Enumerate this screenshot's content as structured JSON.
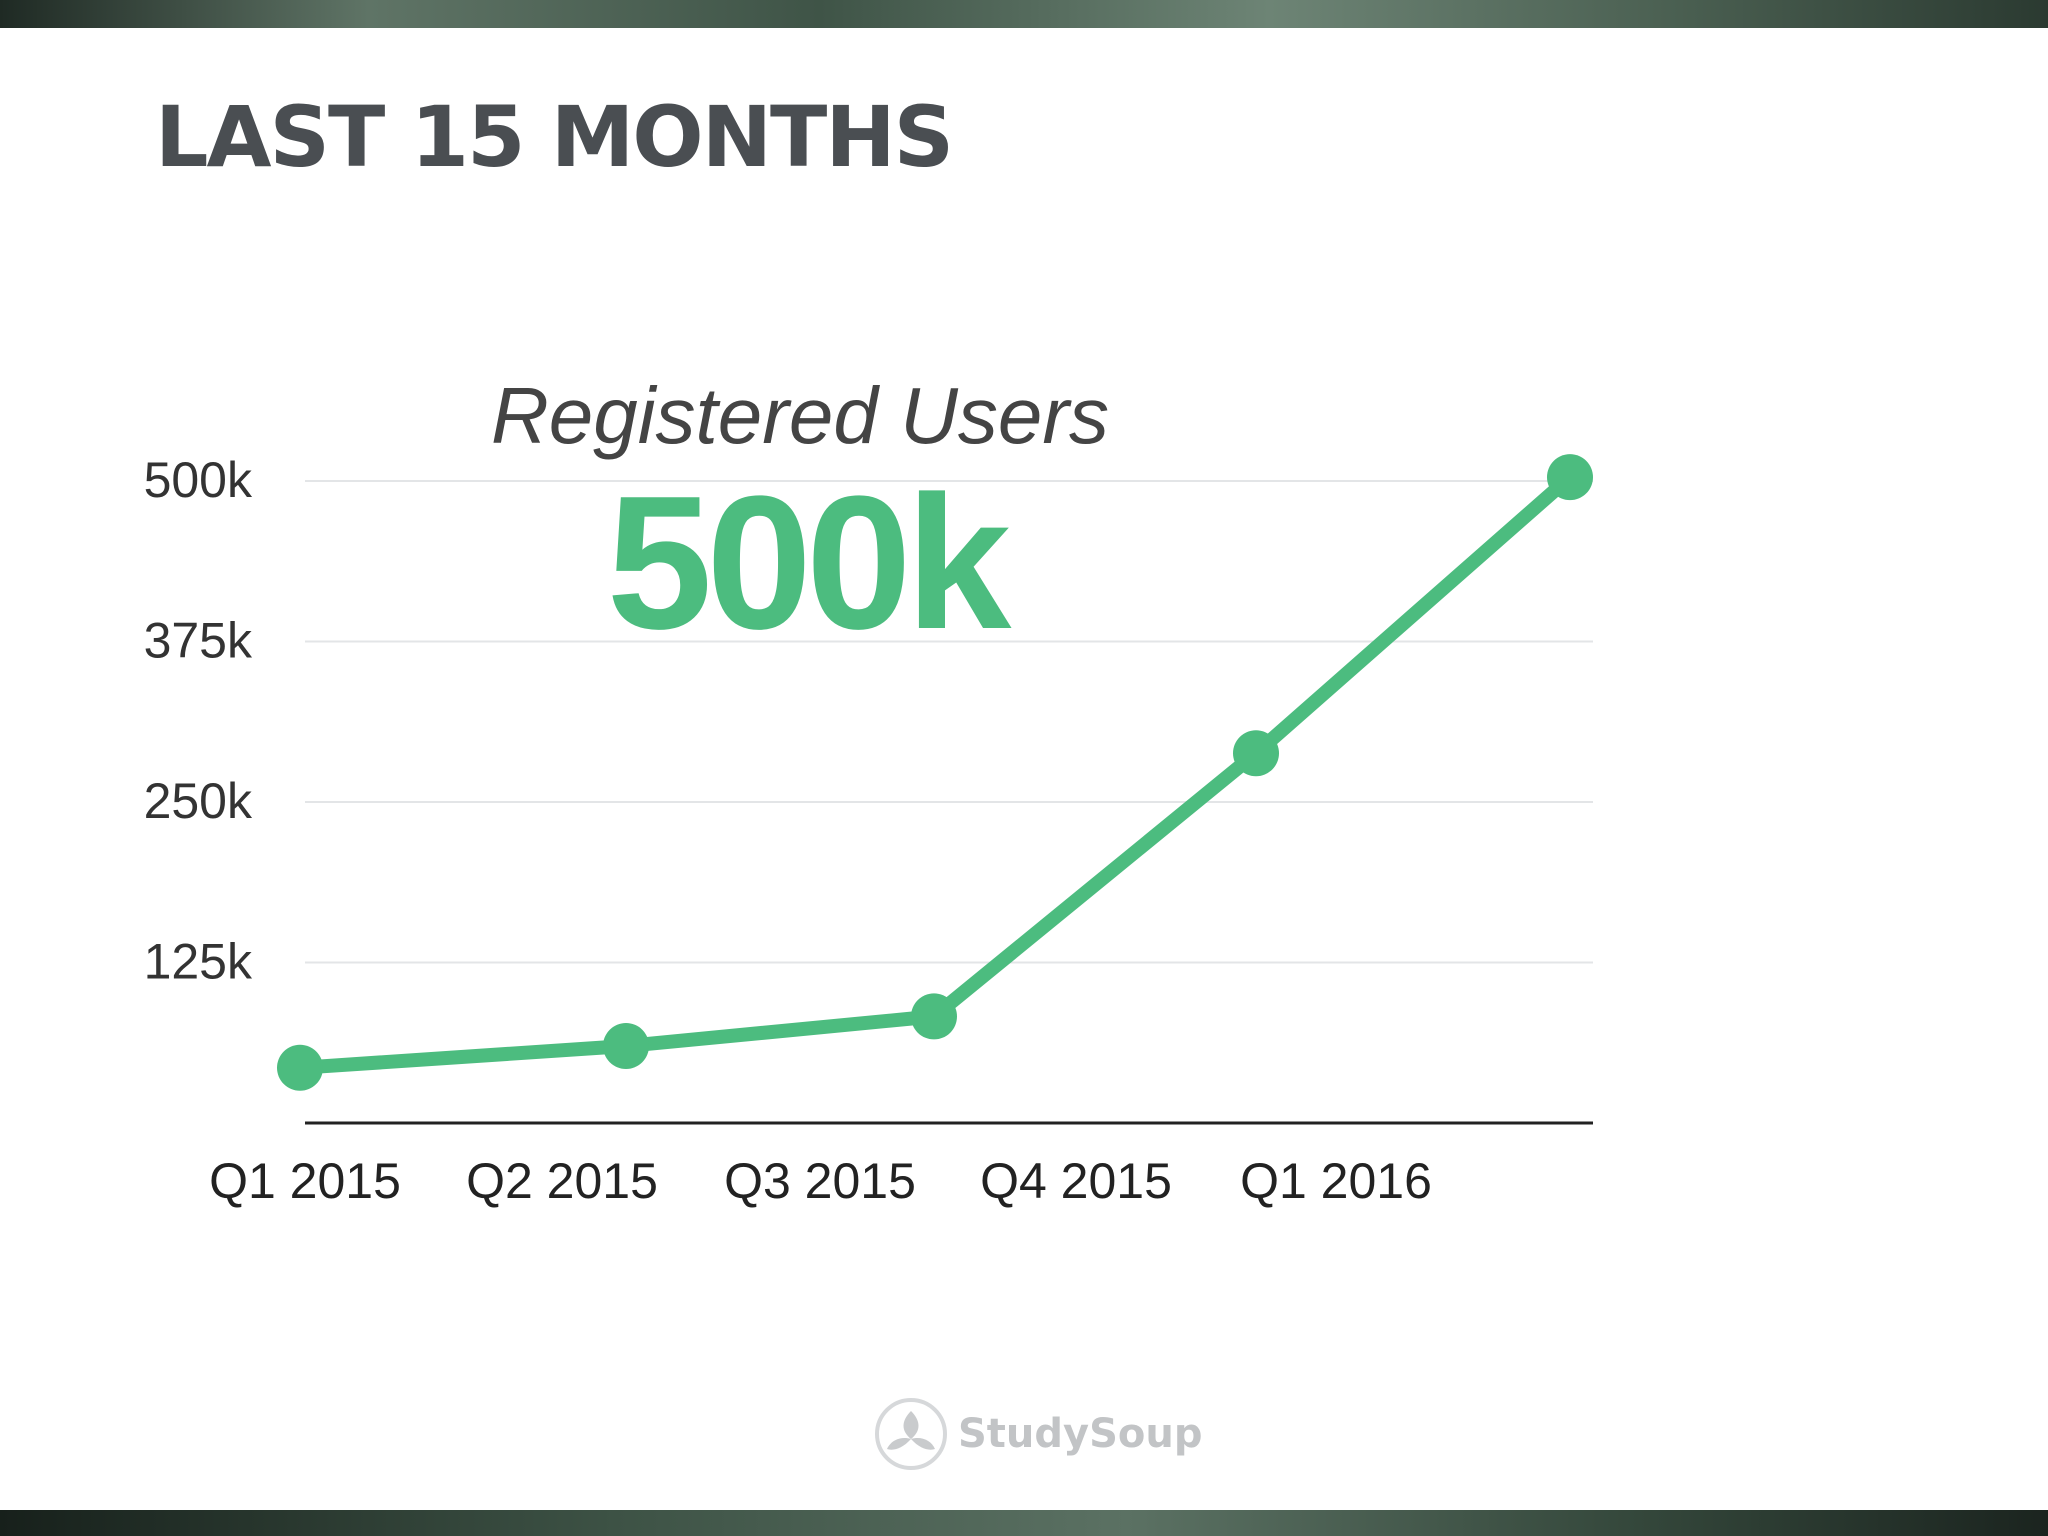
{
  "header": {
    "title": "LAST 15 MONTHS"
  },
  "brand": {
    "name": "StudySoup",
    "icon": "studysoup-logo-icon"
  },
  "chart_data": {
    "type": "line",
    "title": "Registered Users",
    "headline_value": "500k",
    "categories": [
      "Q1 2015",
      "Q2 2015",
      "Q3 2015",
      "Q4 2015",
      "Q1 2016"
    ],
    "series": [
      {
        "values": [
          43000,
          60000,
          83000,
          288000,
          503000
        ]
      }
    ],
    "yticks": [
      {
        "value": 125000,
        "label": "125k"
      },
      {
        "value": 250000,
        "label": "250k"
      },
      {
        "value": 375000,
        "label": "375k"
      },
      {
        "value": 500000,
        "label": "500k"
      }
    ],
    "ylim": [
      0,
      500000
    ],
    "grid": true,
    "legend": "none",
    "colors": {
      "line": "#4cbc7f",
      "grid": "#e3e5e7",
      "axis": "#222222",
      "text": "#333333",
      "headline": "#4cbc7f"
    }
  }
}
